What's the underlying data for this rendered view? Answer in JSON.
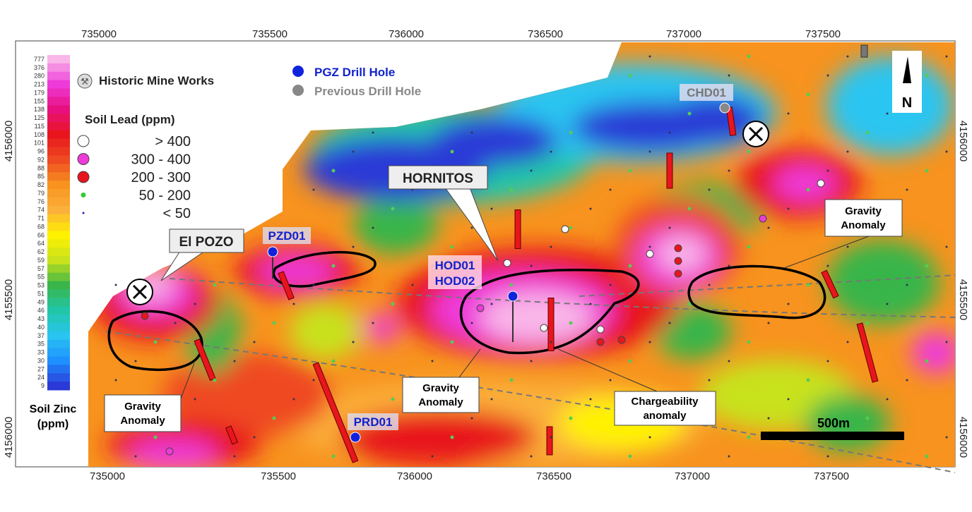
{
  "axes": {
    "top": [
      "735000",
      "735500",
      "736000",
      "736500",
      "737000",
      "737500"
    ],
    "bottom": [
      "735000",
      "735500",
      "736000",
      "736500",
      "737000",
      "737500"
    ],
    "left": [
      "4156000",
      "4155500",
      "4156000"
    ],
    "right": [
      "4156000",
      "4155500",
      "4156000"
    ]
  },
  "legend": {
    "mine_works": "Historic Mine Works",
    "pgz_drill_hole": "PGZ Drill Hole",
    "previous_drill_hole": "Previous Drill Hole",
    "soil_lead_title": "Soil Lead (ppm)",
    "soil_lead_classes": [
      "> 400",
      "300 - 400",
      "200 - 300",
      "50 - 200",
      "< 50"
    ],
    "soil_zinc_title": "Soil Zinc (ppm)",
    "soil_zinc_scale": [
      "777",
      "376",
      "280",
      "213",
      "179",
      "155",
      "138",
      "125",
      "115",
      "108",
      "101",
      "96",
      "92",
      "88",
      "85",
      "82",
      "79",
      "76",
      "74",
      "71",
      "68",
      "66",
      "64",
      "62",
      "59",
      "57",
      "55",
      "53",
      "51",
      "49",
      "46",
      "43",
      "40",
      "37",
      "35",
      "33",
      "30",
      "27",
      "24",
      "9"
    ]
  },
  "labels": {
    "chd01": "CHD01",
    "hornitos": "HORNITOS",
    "el_pozo": "El POZO",
    "pzd01": "PZD01",
    "hod01": "HOD01",
    "hod02": "HOD02",
    "prd01": "PRD01",
    "gravity_left": "Gravity Anomaly",
    "gravity_center": "Gravity Anomaly",
    "gravity_right": "Gravity Anomaly",
    "chargeability": "Chargeability anomaly",
    "scale_bar": "500m",
    "north": "N"
  }
}
